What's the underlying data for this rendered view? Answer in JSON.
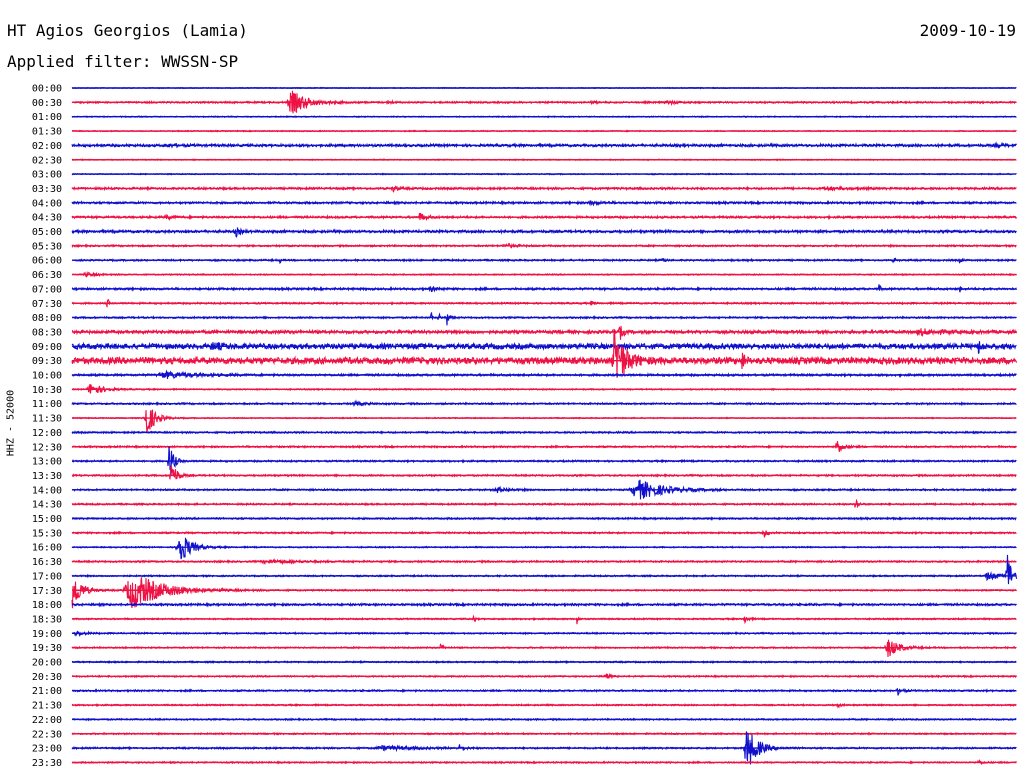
{
  "header": {
    "station": "HT Agios Georgios (Lamia)",
    "filter": "Applied filter: WWSSN-SP",
    "date": "2009-10-19"
  },
  "side_label": "HHZ - 52000",
  "colors": {
    "even": "#1010cc",
    "odd": "#ee1144"
  },
  "chart_data": {
    "type": "line",
    "title": "HT Agios Georgios (Lamia)",
    "subtitle": "Applied filter: WWSSN-SP",
    "channel": "HHZ - 52000",
    "x_axis": "time within 30-minute trace row",
    "y_categories": [
      "00:00",
      "00:30",
      "01:00",
      "01:30",
      "02:00",
      "02:30",
      "03:00",
      "03:30",
      "04:00",
      "04:30",
      "05:00",
      "05:30",
      "06:00",
      "06:30",
      "07:00",
      "07:30",
      "08:00",
      "08:30",
      "09:00",
      "09:30",
      "10:00",
      "10:30",
      "11:00",
      "11:30",
      "12:00",
      "12:30",
      "13:00",
      "13:30",
      "14:00",
      "14:30",
      "15:00",
      "15:30",
      "16:00",
      "16:30",
      "17:00",
      "17:30",
      "18:00",
      "18:30",
      "19:00",
      "19:30",
      "20:00",
      "20:30",
      "21:00",
      "21:30",
      "22:00",
      "22:30",
      "23:00",
      "23:30"
    ],
    "rows": [
      {
        "label": "00:00",
        "noise": 0.4,
        "events": []
      },
      {
        "label": "00:30",
        "noise": 0.8,
        "events": [
          [
            0.233,
            12,
            0.015
          ],
          [
            0.335,
            1.5,
            0.005
          ],
          [
            0.55,
            1.2,
            0.004
          ],
          [
            0.63,
            1.8,
            0.008
          ]
        ]
      },
      {
        "label": "01:00",
        "noise": 0.5,
        "events": []
      },
      {
        "label": "01:30",
        "noise": 0.5,
        "events": []
      },
      {
        "label": "02:00",
        "noise": 1.2,
        "events": [
          [
            0.1,
            1.5,
            0.01
          ],
          [
            0.98,
            1.5,
            0.01
          ]
        ]
      },
      {
        "label": "02:30",
        "noise": 0.5,
        "events": []
      },
      {
        "label": "03:00",
        "noise": 0.5,
        "events": []
      },
      {
        "label": "03:30",
        "noise": 1.0,
        "events": [
          [
            0.34,
            3,
            0.004
          ],
          [
            0.8,
            1.5,
            0.02
          ]
        ]
      },
      {
        "label": "04:00",
        "noise": 1.0,
        "events": [
          [
            0.55,
            1.5,
            0.01
          ]
        ]
      },
      {
        "label": "04:30",
        "noise": 1.0,
        "events": [
          [
            0.1,
            2,
            0.006
          ],
          [
            0.368,
            4,
            0.006
          ]
        ]
      },
      {
        "label": "05:00",
        "noise": 1.2,
        "events": [
          [
            0.173,
            5,
            0.004
          ]
        ]
      },
      {
        "label": "05:30",
        "noise": 0.8,
        "events": [
          [
            0.46,
            2,
            0.01
          ]
        ]
      },
      {
        "label": "06:00",
        "noise": 0.8,
        "events": [
          [
            0.22,
            4,
            0.001
          ],
          [
            0.625,
            2.5,
            0.003
          ],
          [
            0.715,
            2.5,
            0.002
          ],
          [
            0.87,
            2.5,
            0.002
          ],
          [
            0.94,
            3,
            0.002
          ]
        ]
      },
      {
        "label": "06:30",
        "noise": 0.6,
        "events": [
          [
            0.015,
            2,
            0.01
          ]
        ]
      },
      {
        "label": "07:00",
        "noise": 1.0,
        "events": [
          [
            0.38,
            2,
            0.006
          ],
          [
            0.855,
            5,
            0.001
          ],
          [
            0.94,
            6,
            0.001
          ]
        ]
      },
      {
        "label": "07:30",
        "noise": 0.8,
        "events": [
          [
            0.037,
            9,
            0.001
          ],
          [
            0.55,
            2,
            0.003
          ]
        ]
      },
      {
        "label": "08:00",
        "noise": 0.8,
        "events": [
          [
            0.38,
            6,
            0.001
          ],
          [
            0.388,
            7,
            0.001
          ],
          [
            0.397,
            8,
            0.002
          ]
        ]
      },
      {
        "label": "08:30",
        "noise": 1.5,
        "events": [
          [
            0.58,
            8,
            0.003
          ],
          [
            0.9,
            2.5,
            0.02
          ]
        ]
      },
      {
        "label": "09:00",
        "noise": 2.6,
        "events": [
          [
            0.15,
            2.5,
            0.01
          ],
          [
            0.96,
            6,
            0.003
          ]
        ]
      },
      {
        "label": "09:30",
        "noise": 3.2,
        "events": [
          [
            0.575,
            32,
            0.01
          ],
          [
            0.71,
            10,
            0.002
          ]
        ]
      },
      {
        "label": "10:00",
        "noise": 1.0,
        "events": [
          [
            0.1,
            3,
            0.03
          ]
        ]
      },
      {
        "label": "10:30",
        "noise": 0.6,
        "events": [
          [
            0.02,
            6,
            0.012
          ]
        ]
      },
      {
        "label": "11:00",
        "noise": 0.8,
        "events": [
          [
            0.3,
            1.8,
            0.01
          ]
        ]
      },
      {
        "label": "11:30",
        "noise": 0.5,
        "events": [
          [
            0.078,
            20,
            0.008
          ]
        ]
      },
      {
        "label": "12:00",
        "noise": 0.8,
        "events": []
      },
      {
        "label": "12:30",
        "noise": 0.8,
        "events": [
          [
            0.81,
            7,
            0.006
          ]
        ]
      },
      {
        "label": "13:00",
        "noise": 0.8,
        "events": [
          [
            0.103,
            22,
            0.004
          ]
        ]
      },
      {
        "label": "13:30",
        "noise": 0.8,
        "events": [
          [
            0.105,
            15,
            0.005
          ]
        ]
      },
      {
        "label": "14:00",
        "noise": 0.8,
        "events": [
          [
            0.45,
            3,
            0.01
          ],
          [
            0.6,
            10,
            0.025
          ]
        ]
      },
      {
        "label": "14:30",
        "noise": 0.8,
        "events": [
          [
            0.83,
            9,
            0.002
          ]
        ]
      },
      {
        "label": "15:00",
        "noise": 0.8,
        "events": []
      },
      {
        "label": "15:30",
        "noise": 0.8,
        "events": [
          [
            0.733,
            4,
            0.003
          ]
        ]
      },
      {
        "label": "16:00",
        "noise": 0.6,
        "events": [
          [
            0.114,
            18,
            0.01
          ]
        ]
      },
      {
        "label": "16:30",
        "noise": 0.8,
        "events": [
          [
            0.21,
            1.5,
            0.03
          ]
        ]
      },
      {
        "label": "17:00",
        "noise": 0.7,
        "events": [
          [
            0.99,
            28,
            0.004
          ],
          [
            0.97,
            4,
            0.01
          ]
        ]
      },
      {
        "label": "17:30",
        "noise": 0.7,
        "events": [
          [
            0.0,
            22,
            0.008
          ],
          [
            0.065,
            18,
            0.03
          ]
        ]
      },
      {
        "label": "18:00",
        "noise": 1.0,
        "events": []
      },
      {
        "label": "18:30",
        "noise": 0.7,
        "events": [
          [
            0.425,
            7,
            0.001
          ],
          [
            0.535,
            6,
            0.001
          ],
          [
            0.712,
            5,
            0.003
          ]
        ]
      },
      {
        "label": "19:00",
        "noise": 0.7,
        "events": [
          [
            0.005,
            2,
            0.008
          ]
        ]
      },
      {
        "label": "19:30",
        "noise": 0.7,
        "events": [
          [
            0.39,
            4,
            0.003
          ],
          [
            0.865,
            10,
            0.01
          ]
        ]
      },
      {
        "label": "20:00",
        "noise": 0.7,
        "events": []
      },
      {
        "label": "20:30",
        "noise": 0.7,
        "events": [
          [
            0.565,
            3,
            0.004
          ]
        ]
      },
      {
        "label": "21:00",
        "noise": 0.8,
        "events": [
          [
            0.875,
            4,
            0.004
          ]
        ]
      },
      {
        "label": "21:30",
        "noise": 0.7,
        "events": [
          [
            0.81,
            3,
            0.003
          ]
        ]
      },
      {
        "label": "22:00",
        "noise": 0.7,
        "events": []
      },
      {
        "label": "22:30",
        "noise": 0.7,
        "events": []
      },
      {
        "label": "23:00",
        "noise": 0.8,
        "events": [
          [
            0.33,
            2,
            0.03
          ],
          [
            0.41,
            3,
            0.004
          ],
          [
            0.715,
            22,
            0.01
          ]
        ]
      },
      {
        "label": "23:30",
        "noise": 0.7,
        "events": [
          [
            0.96,
            2,
            0.004
          ]
        ]
      }
    ]
  }
}
